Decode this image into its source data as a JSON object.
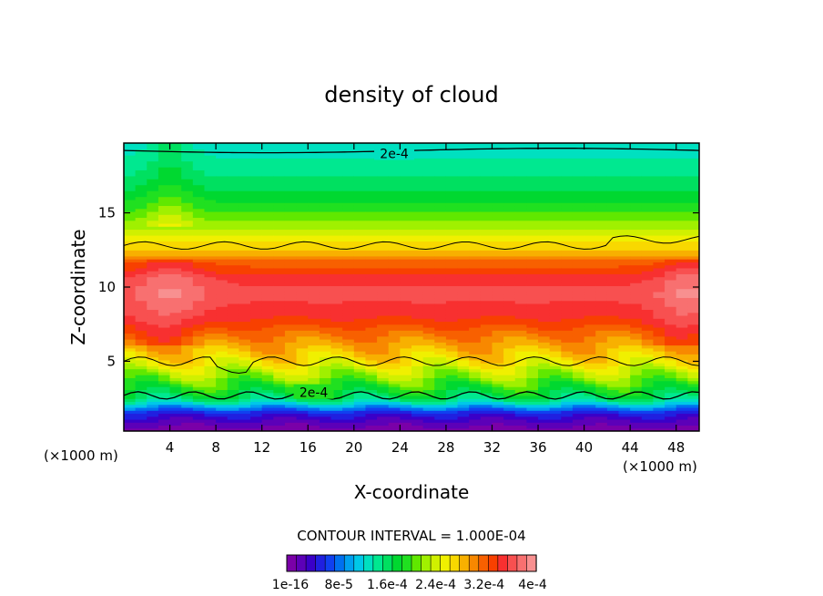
{
  "chart_data": {
    "type": "heatmap",
    "title": "density of cloud",
    "xlabel": "X-coordinate",
    "ylabel": "Z-coordinate",
    "x_unit_left": "(×1000 m)",
    "x_unit_right": "(×1000 m)",
    "xlim": [
      0,
      50
    ],
    "ylim": [
      0.3,
      19.7
    ],
    "x_ticks": [
      4,
      8,
      12,
      16,
      20,
      24,
      28,
      32,
      36,
      40,
      44,
      48
    ],
    "x_tick_labels": [
      "4",
      "8",
      "12",
      "16",
      "20",
      "24",
      "28",
      "32",
      "36",
      "40",
      "44",
      "48"
    ],
    "y_ticks": [
      5,
      10,
      15
    ],
    "y_tick_labels": [
      "5",
      "10",
      "15"
    ],
    "contour_interval_text": "CONTOUR INTERVAL = 1.000E-04",
    "contour_labels": [
      "2e-4",
      "2e-4"
    ],
    "colorbar": {
      "range": [
        0,
        0.0004
      ],
      "labels": [
        "1e-16",
        "8e-5",
        "1.6e-4",
        "2.4e-4",
        "3.2e-4",
        "4e-4"
      ],
      "colors": [
        "#7a00a8",
        "#5c00b8",
        "#3a00c8",
        "#2020e0",
        "#1040f0",
        "#0070f0",
        "#00a0f0",
        "#00c8e8",
        "#00e0c0",
        "#00e890",
        "#00e060",
        "#00d830",
        "#20e020",
        "#60e800",
        "#a0f000",
        "#d0f000",
        "#f0f000",
        "#f8d800",
        "#f8b000",
        "#f88800",
        "#f86000",
        "#f84000",
        "#f83030",
        "#f85050",
        "#f87070",
        "#f89090"
      ]
    },
    "profile_note_z_km": [
      0.5,
      1.5,
      2.5,
      3.5,
      5,
      6.5,
      8,
      9.5,
      10.5,
      11.5,
      12.5,
      14,
      15.5,
      17,
      18.5,
      19.7
    ],
    "profile_density": [
      1e-05,
      5e-05,
      0.00016,
      0.0002,
      0.00026,
      0.0003,
      0.00034,
      0.00036,
      0.00035,
      0.00032,
      0.00028,
      0.00023,
      0.00019,
      0.00016,
      0.00014,
      0.00013
    ]
  }
}
